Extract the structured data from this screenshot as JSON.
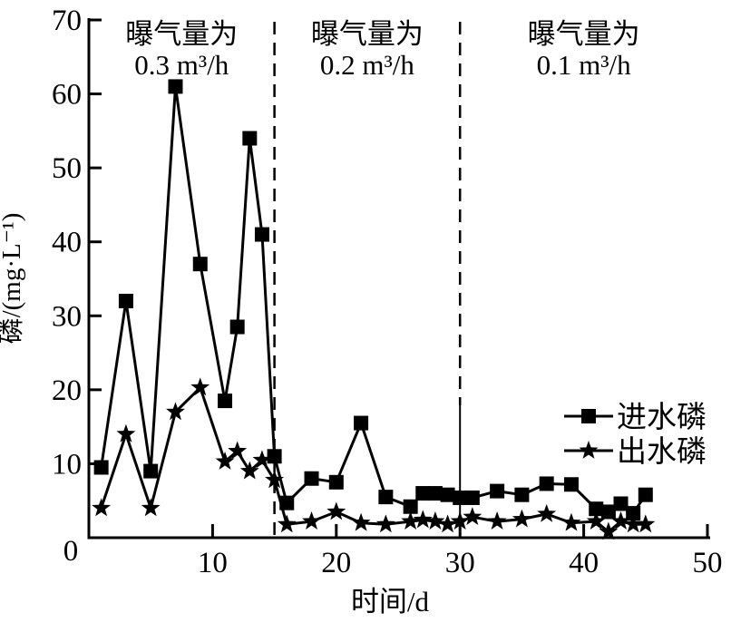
{
  "chart_data": {
    "type": "line",
    "title": "",
    "xlabel": "时间/d",
    "ylabel": "磷/(mg·L⁻¹)",
    "xlim": [
      0,
      50
    ],
    "ylim": [
      0,
      70
    ],
    "x_ticks": [
      0,
      10,
      20,
      30,
      40,
      50
    ],
    "y_ticks": [
      0,
      10,
      20,
      30,
      40,
      50,
      60,
      70
    ],
    "grid": false,
    "legend_position": "right-center",
    "line_color": "#000000",
    "x": [
      1,
      3,
      5,
      7,
      9,
      11,
      12,
      13,
      14,
      15,
      16,
      18,
      20,
      22,
      24,
      26,
      27,
      28,
      29,
      30,
      31,
      33,
      35,
      37,
      39,
      41,
      42,
      43,
      44,
      45
    ],
    "series": [
      {
        "name": "进水磷",
        "marker": "square",
        "values": [
          9.5,
          32,
          9,
          61,
          37,
          18.5,
          28.5,
          54,
          41,
          11,
          4.7,
          8,
          7.5,
          15.5,
          5.5,
          4.2,
          6,
          6,
          5.8,
          5.4,
          5.4,
          6.3,
          5.8,
          7.3,
          7.2,
          3.9,
          3.5,
          4.6,
          3.3,
          5.8
        ]
      },
      {
        "name": "出水磷",
        "marker": "star",
        "values": [
          4,
          14,
          4,
          17,
          20.3,
          10.3,
          11.7,
          9,
          10.5,
          7.8,
          1.8,
          2.2,
          3.5,
          2,
          1.8,
          2.2,
          2.4,
          2.2,
          1.8,
          2.2,
          2.8,
          2.2,
          2.5,
          3.2,
          2,
          2.2,
          0.8,
          2.2,
          1.8,
          1.8
        ]
      }
    ],
    "regions": [
      {
        "line1": "曝气量为",
        "line2": "0.3 m³/h",
        "from": 0,
        "to": 15
      },
      {
        "line1": "曝气量为",
        "line2": "0.2 m³/h",
        "from": 15,
        "to": 30
      },
      {
        "line1": "曝气量为",
        "line2": "0.1 m³/h",
        "from": 30,
        "to": 50
      }
    ],
    "separators": [
      15,
      30
    ]
  }
}
